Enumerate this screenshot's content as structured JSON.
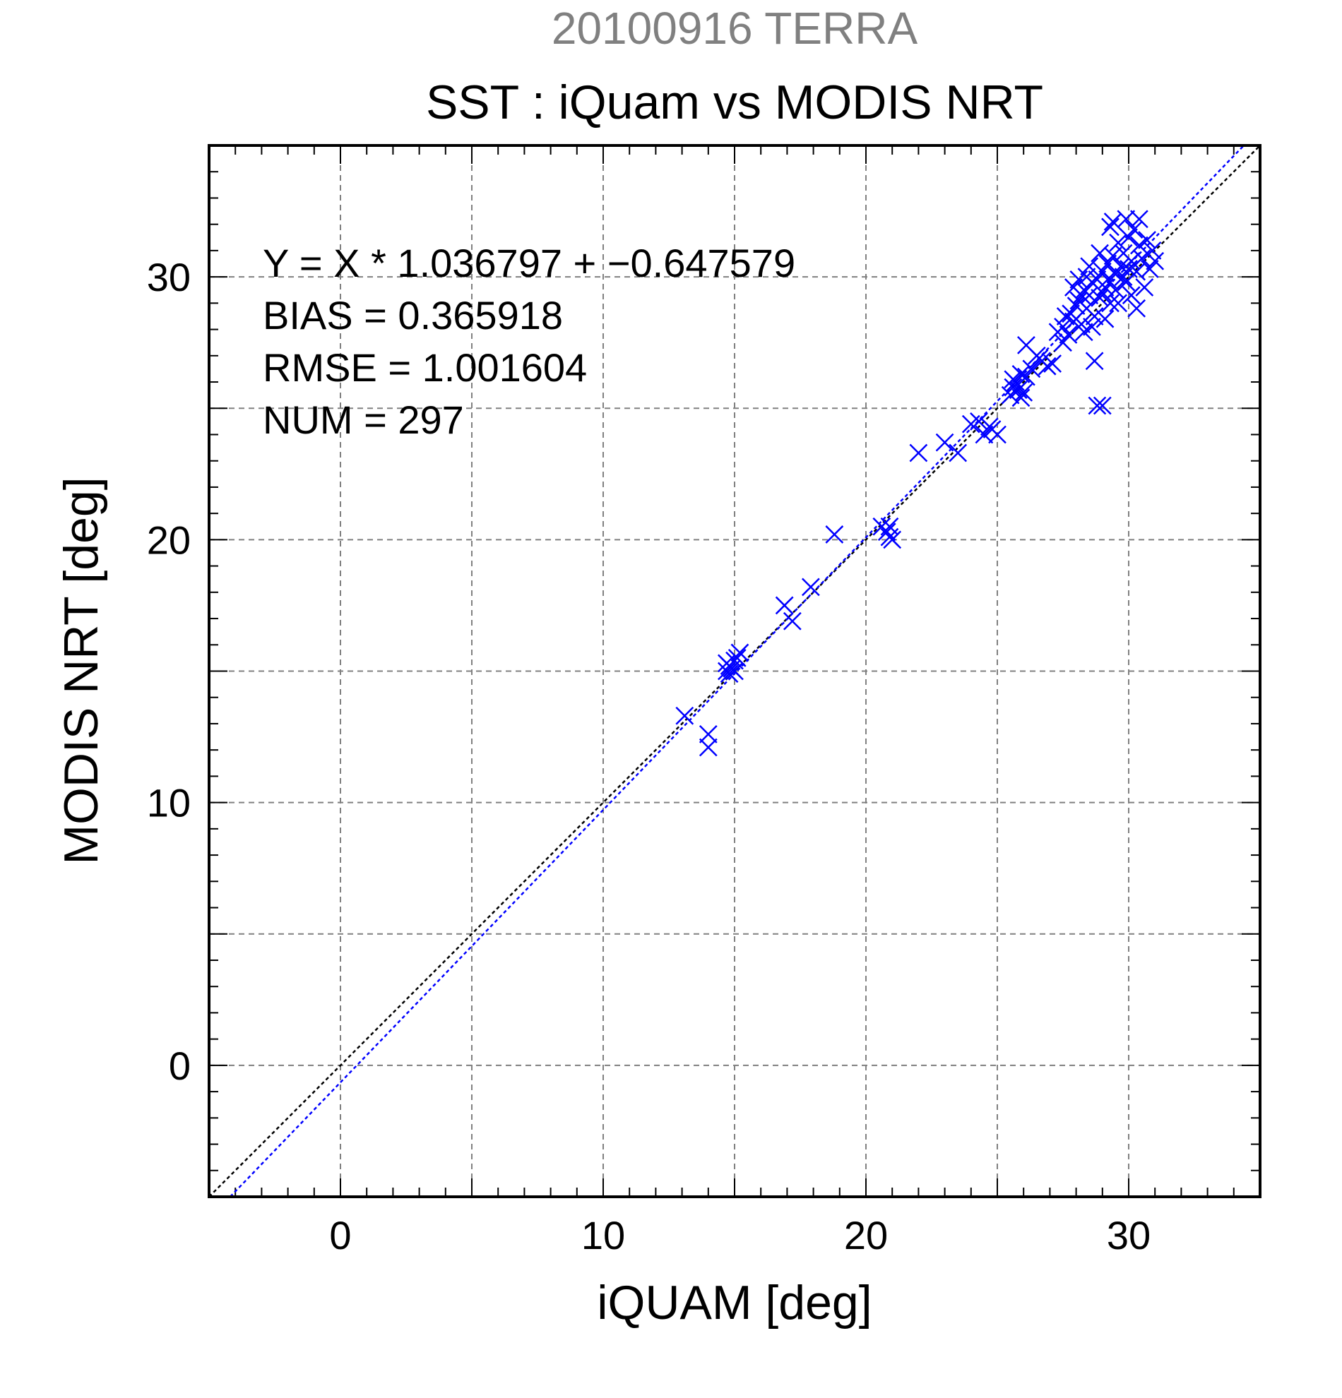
{
  "header": {
    "date_label": "20100916 TERRA",
    "title": "SST : iQuam vs MODIS NRT"
  },
  "stats": {
    "equation": "Y = X * 1.036797 + −0.647579",
    "bias": "BIAS = 0.365918",
    "rmse": "RMSE = 1.001604",
    "num": "NUM = 297"
  },
  "colors": {
    "title_gray": "#808080",
    "points": "#0000ff",
    "fit_line": "#0000ff",
    "one_to_one_line": "#000000",
    "grid": "#808080"
  },
  "chart_data": {
    "type": "scatter",
    "title": "SST : iQuam vs MODIS NRT",
    "subtitle": "20100916 TERRA",
    "xlabel": "iQUAM [deg]",
    "ylabel": "MODIS NRT [deg]",
    "xlim": [
      -5,
      35
    ],
    "ylim": [
      -5,
      35
    ],
    "xticks": [
      0,
      10,
      20,
      30
    ],
    "yticks": [
      0,
      10,
      20,
      30
    ],
    "xtick_labels": [
      "0",
      "10",
      "20",
      "30"
    ],
    "ytick_labels": [
      "0",
      "10",
      "20",
      "30"
    ],
    "grid": true,
    "marker": "x",
    "fit": {
      "slope": 1.036797,
      "intercept": -0.647579
    },
    "one_to_one": true,
    "points": [
      [
        13.1,
        13.3
      ],
      [
        14.0,
        12.6
      ],
      [
        14.0,
        12.1
      ],
      [
        14.7,
        15.3
      ],
      [
        14.8,
        14.9
      ],
      [
        14.9,
        15.1
      ],
      [
        15.0,
        15.4
      ],
      [
        14.7,
        15.0
      ],
      [
        15.1,
        15.5
      ],
      [
        15.2,
        15.7
      ],
      [
        14.8,
        15.2
      ],
      [
        15.0,
        15.0
      ],
      [
        16.9,
        17.5
      ],
      [
        17.2,
        16.9
      ],
      [
        17.9,
        18.2
      ],
      [
        18.8,
        20.2
      ],
      [
        20.6,
        20.5
      ],
      [
        20.8,
        20.3
      ],
      [
        20.9,
        20.5
      ],
      [
        21.0,
        20.0
      ],
      [
        20.9,
        20.1
      ],
      [
        22.0,
        23.3
      ],
      [
        23.0,
        23.7
      ],
      [
        23.5,
        23.3
      ],
      [
        24.0,
        24.4
      ],
      [
        24.3,
        24.5
      ],
      [
        24.5,
        24.0
      ],
      [
        24.8,
        24.2
      ],
      [
        25.0,
        24.0
      ],
      [
        24.7,
        24.3
      ],
      [
        25.5,
        25.5
      ],
      [
        25.6,
        25.8
      ],
      [
        25.7,
        26.0
      ],
      [
        25.8,
        25.7
      ],
      [
        25.9,
        25.4
      ],
      [
        26.0,
        25.6
      ],
      [
        26.1,
        26.2
      ],
      [
        26.3,
        26.5
      ],
      [
        25.6,
        26.1
      ],
      [
        25.9,
        26.3
      ],
      [
        26.5,
        27.0
      ],
      [
        26.7,
        26.8
      ],
      [
        26.9,
        26.6
      ],
      [
        27.1,
        26.7
      ],
      [
        26.6,
        26.9
      ],
      [
        26.1,
        27.4
      ],
      [
        27.3,
        27.9
      ],
      [
        27.5,
        28.1
      ],
      [
        27.6,
        28.5
      ],
      [
        27.7,
        27.8
      ],
      [
        27.8,
        28.6
      ],
      [
        27.9,
        28.3
      ],
      [
        28.0,
        28.9
      ],
      [
        28.1,
        29.1
      ],
      [
        28.2,
        28.2
      ],
      [
        28.3,
        29.5
      ],
      [
        28.4,
        28.8
      ],
      [
        28.5,
        29.3
      ],
      [
        28.6,
        29.8
      ],
      [
        28.7,
        28.5
      ],
      [
        28.8,
        29.9
      ],
      [
        28.9,
        29.2
      ],
      [
        29.0,
        30.2
      ],
      [
        29.1,
        29.6
      ],
      [
        29.2,
        30.5
      ],
      [
        29.3,
        29.0
      ],
      [
        29.4,
        30.8
      ],
      [
        29.5,
        30.1
      ],
      [
        29.6,
        31.3
      ],
      [
        29.7,
        30.4
      ],
      [
        29.8,
        30.9
      ],
      [
        29.9,
        29.8
      ],
      [
        30.0,
        31.5
      ],
      [
        30.1,
        30.6
      ],
      [
        30.2,
        31.8
      ],
      [
        30.3,
        30.2
      ],
      [
        30.4,
        31.2
      ],
      [
        30.5,
        30.7
      ],
      [
        30.6,
        29.6
      ],
      [
        30.7,
        31.4
      ],
      [
        30.8,
        30.3
      ],
      [
        30.9,
        31.0
      ],
      [
        31.0,
        30.6
      ],
      [
        29.3,
        31.9
      ],
      [
        29.4,
        32.1
      ],
      [
        29.9,
        32.2
      ],
      [
        30.4,
        32.2
      ],
      [
        28.5,
        30.4
      ],
      [
        28.9,
        30.9
      ],
      [
        29.0,
        29.4
      ],
      [
        28.3,
        27.9
      ],
      [
        28.6,
        28.1
      ],
      [
        29.1,
        28.4
      ],
      [
        29.6,
        29.0
      ],
      [
        30.1,
        29.3
      ],
      [
        30.3,
        28.8
      ],
      [
        27.9,
        29.6
      ],
      [
        28.1,
        29.9
      ],
      [
        28.7,
        26.8
      ],
      [
        28.8,
        25.1
      ],
      [
        29.0,
        25.1
      ],
      [
        27.5,
        27.5
      ],
      [
        28.2,
        29.3
      ],
      [
        28.4,
        30.0
      ],
      [
        29.2,
        29.9
      ],
      [
        29.5,
        29.5
      ],
      [
        29.8,
        30.0
      ],
      [
        30.0,
        30.3
      ]
    ]
  }
}
